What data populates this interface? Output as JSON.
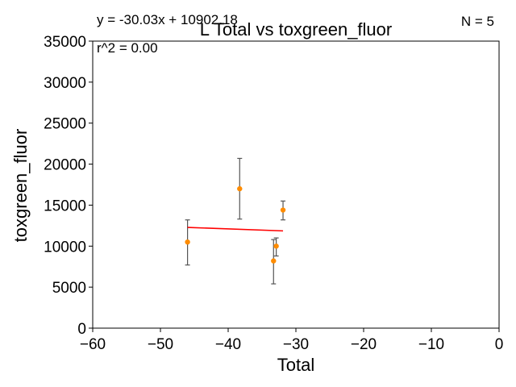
{
  "chart_data": {
    "type": "scatter",
    "title": "L Total vs toxgreen_fluor",
    "xlabel": "Total",
    "ylabel": "toxgreen_fluor",
    "xlim": [
      -60,
      0
    ],
    "ylim": [
      0,
      35000
    ],
    "x_ticks": [
      -60,
      -50,
      -40,
      -30,
      -20,
      -10,
      0
    ],
    "x_tick_labels": [
      "−60",
      "−50",
      "−40",
      "−30",
      "−20",
      "−10",
      "0"
    ],
    "y_ticks": [
      0,
      5000,
      10000,
      15000,
      20000,
      25000,
      30000,
      35000
    ],
    "y_tick_labels": [
      "0",
      "5000",
      "10000",
      "15000",
      "20000",
      "25000",
      "30000",
      "35000"
    ],
    "grid": false,
    "points": [
      {
        "x": -46.0,
        "y": 10500,
        "err_low": 7700,
        "err_high": 13200
      },
      {
        "x": -38.3,
        "y": 17000,
        "err_low": 13300,
        "err_high": 20700
      },
      {
        "x": -33.3,
        "y": 8200,
        "err_low": 5400,
        "err_high": 10800
      },
      {
        "x": -32.9,
        "y": 10000,
        "err_low": 8800,
        "err_high": 11000
      },
      {
        "x": -31.9,
        "y": 14400,
        "err_low": 13200,
        "err_high": 15500
      }
    ],
    "fit_line": {
      "x": [
        -46.0,
        -31.9
      ]
    },
    "point_color": "#ff8c00",
    "errorbar_color": "#555555",
    "fit_color": "#ff0000",
    "equation": "y = -30.03x + 10902.18",
    "r_squared": "r^2 = 0.00",
    "n_label": "N = 5"
  }
}
